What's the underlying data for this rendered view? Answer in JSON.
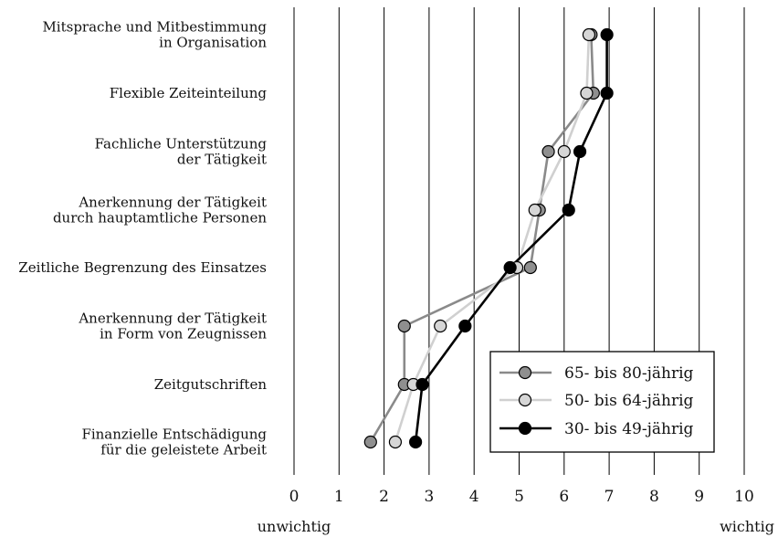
{
  "chart_data": {
    "type": "line",
    "orientation": "horizontal",
    "categories": [
      [
        "Mitsprache und Mitbestimmung",
        "in Organisation"
      ],
      [
        "Flexible Zeiteinteilung"
      ],
      [
        "Fachliche Unterstützung",
        "der Tätigkeit"
      ],
      [
        "Anerkennung der Tätigkeit",
        "durch hauptamtliche Personen"
      ],
      [
        "Zeitliche Begrenzung des Einsatzes"
      ],
      [
        "Anerkennung der Tätigkeit",
        "in Form von Zeugnissen"
      ],
      [
        "Zeitgutschriften"
      ],
      [
        "Finanzielle Entschädigung",
        "für die geleistete Arbeit"
      ]
    ],
    "series": [
      {
        "name": "65- bis 80-jährig",
        "line_color": "#8a8a8a",
        "marker_color": "#8f8f8f",
        "values": [
          6.6,
          6.65,
          5.65,
          5.45,
          5.25,
          2.45,
          2.45,
          1.7
        ]
      },
      {
        "name": "50- bis 64-jährig",
        "line_color": "#d0d0d0",
        "marker_color": "#d6d6d6",
        "values": [
          6.55,
          6.5,
          6.0,
          5.35,
          4.95,
          3.25,
          2.65,
          2.25
        ]
      },
      {
        "name": "30- bis 49-jährig",
        "line_color": "#000000",
        "marker_color": "#000000",
        "values": [
          6.95,
          6.95,
          6.35,
          6.1,
          4.8,
          3.8,
          2.85,
          2.7
        ]
      }
    ],
    "xlim": [
      0,
      10
    ],
    "xticks": [
      "0",
      "1",
      "2",
      "3",
      "4",
      "5",
      "6",
      "7",
      "8",
      "9",
      "10"
    ],
    "xlabel_low": "unwichtig",
    "xlabel_high": "wichtig",
    "grid": "vertical",
    "legend_position": "bottom-right"
  }
}
